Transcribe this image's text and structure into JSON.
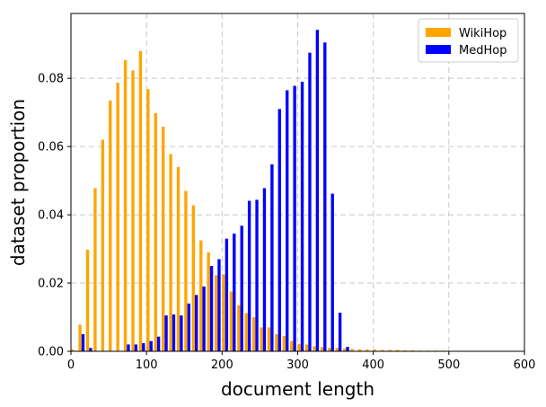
{
  "chart_data": {
    "type": "bar",
    "xlabel": "document length",
    "ylabel": "dataset proportion",
    "xlim": [
      0,
      600
    ],
    "ylim": [
      0,
      0.099
    ],
    "xticks": [
      "0",
      "100",
      "200",
      "300",
      "400",
      "500",
      "600"
    ],
    "yticks": [
      "0.00",
      "0.02",
      "0.04",
      "0.06",
      "0.08"
    ],
    "grid": true,
    "legend_position": "top-right",
    "series": [
      {
        "name": "WikiHop",
        "color": "#FFA500",
        "x": [
          5,
          15,
          25,
          35,
          45,
          55,
          65,
          75,
          85,
          95,
          105,
          115,
          125,
          135,
          145,
          155,
          165,
          175,
          185,
          195,
          205,
          215,
          225,
          235,
          245,
          255,
          265,
          275,
          285,
          295,
          305,
          315,
          325,
          335,
          345,
          355,
          365,
          375,
          385,
          395,
          405,
          415,
          425,
          435,
          445,
          455,
          465,
          475,
          485,
          495,
          505,
          515,
          525,
          535,
          545,
          555,
          565,
          575,
          585,
          595
        ],
        "values": [
          0.0005,
          0.0078,
          0.0298,
          0.0478,
          0.062,
          0.0735,
          0.0787,
          0.0853,
          0.0823,
          0.088,
          0.0768,
          0.0698,
          0.0658,
          0.0578,
          0.054,
          0.047,
          0.0428,
          0.0325,
          0.029,
          0.0223,
          0.0225,
          0.0175,
          0.0135,
          0.0112,
          0.01,
          0.007,
          0.007,
          0.005,
          0.0045,
          0.003,
          0.0022,
          0.002,
          0.0015,
          0.0012,
          0.001,
          0.001,
          0.0008,
          0.0007,
          0.0006,
          0.0005,
          0.0005,
          0.0004,
          0.0004,
          0.0004,
          0.0003,
          0.0003,
          0.0002,
          0.0002,
          0.0002,
          0.0002,
          0.0001,
          0.0001,
          0.0001,
          0.0001,
          0.0001,
          0.0001,
          0.0001,
          0.0001,
          0.0001,
          0.0001
        ]
      },
      {
        "name": "MedHop",
        "color": "#0000FF",
        "x": [
          5,
          15,
          25,
          35,
          45,
          55,
          65,
          75,
          85,
          95,
          105,
          115,
          125,
          135,
          145,
          155,
          165,
          175,
          185,
          195,
          205,
          215,
          225,
          235,
          245,
          255,
          265,
          275,
          285,
          295,
          305,
          315,
          325,
          335,
          345,
          355,
          365,
          375,
          385,
          395,
          405,
          415,
          425,
          435,
          445,
          455,
          465,
          475,
          485,
          495,
          505,
          515,
          525,
          535,
          545,
          555,
          565,
          575,
          585,
          595
        ],
        "values": [
          0,
          0.005,
          0.001,
          0,
          0,
          0,
          0,
          0.002,
          0.002,
          0.0024,
          0.003,
          0.0043,
          0.0105,
          0.0108,
          0.0105,
          0.014,
          0.0165,
          0.019,
          0.025,
          0.027,
          0.033,
          0.0345,
          0.0368,
          0.0441,
          0.0444,
          0.0478,
          0.0548,
          0.071,
          0.0765,
          0.0778,
          0.079,
          0.0875,
          0.0942,
          0.0905,
          0.0462,
          0.0113,
          0.0013,
          0,
          0,
          0,
          0,
          0,
          0,
          0,
          0,
          0,
          0,
          0,
          0,
          0,
          0,
          0,
          0,
          0,
          0,
          0,
          0,
          0,
          0,
          0
        ]
      }
    ]
  }
}
